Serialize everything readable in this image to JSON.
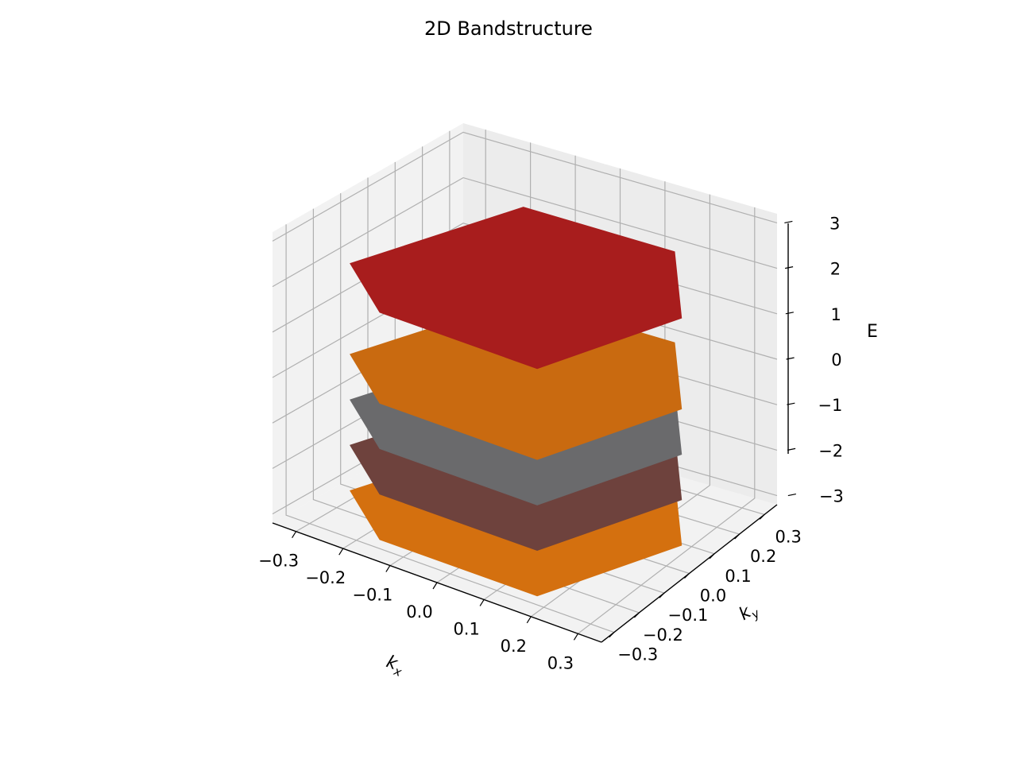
{
  "chart_data": {
    "type": "surface3d",
    "title": "2D Bandstructure",
    "xlabel": "k_x",
    "ylabel": "k_y",
    "zlabel": "E",
    "xlim": [
      -0.35,
      0.35
    ],
    "ylim": [
      -0.35,
      0.35
    ],
    "zlim": [
      -3.2,
      3.2
    ],
    "x_ticks": [
      -0.3,
      -0.2,
      -0.1,
      0.0,
      0.1,
      0.2,
      0.3
    ],
    "y_ticks": [
      -0.3,
      -0.2,
      -0.1,
      0.0,
      0.1,
      0.2,
      0.3
    ],
    "z_ticks": [
      -3,
      -2,
      -1,
      0,
      1,
      2,
      3
    ],
    "x_tick_labels": [
      "−0.3",
      "−0.2",
      "−0.1",
      "0.0",
      "0.1",
      "0.2",
      "0.3"
    ],
    "y_tick_labels": [
      "−0.3",
      "−0.2",
      "−0.1",
      "0.0",
      "0.1",
      "0.2",
      "0.3"
    ],
    "z_tick_labels": [
      "−3",
      "−2",
      "−1",
      "0",
      "1",
      "2",
      "3"
    ],
    "grid": true,
    "bands": [
      {
        "energy": -3.0,
        "color": "#d4700f"
      },
      {
        "energy": -2.0,
        "color": "#6e423d"
      },
      {
        "energy": -1.0,
        "color": "#6a6a6c"
      },
      {
        "energy": 0.0,
        "color": "#c96a10"
      },
      {
        "energy": 2.0,
        "color": "#a81d1d"
      }
    ]
  }
}
